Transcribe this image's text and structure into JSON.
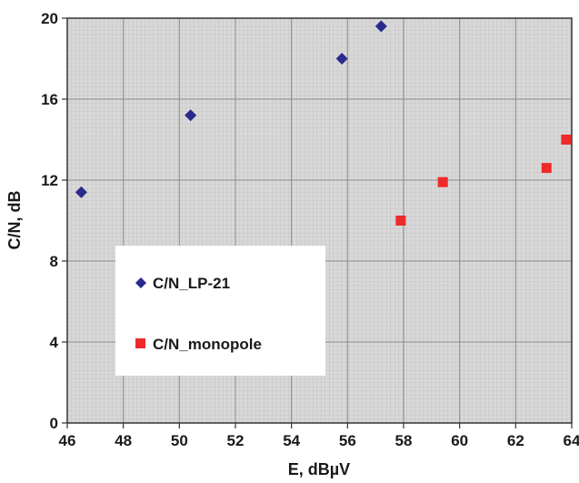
{
  "chart_data": {
    "type": "scatter",
    "xlabel": "E, dBµV",
    "ylabel": "C/N, dB",
    "xlim": [
      46,
      64
    ],
    "ylim": [
      0,
      20
    ],
    "x_ticks": [
      46,
      48,
      50,
      52,
      54,
      56,
      58,
      60,
      62,
      64
    ],
    "y_ticks": [
      0,
      4,
      8,
      12,
      16,
      20
    ],
    "x_tick_labels": [
      "46",
      "48",
      "50",
      "52",
      "54",
      "56",
      "58",
      "60",
      "62",
      "64"
    ],
    "y_tick_labels": [
      "0",
      "4",
      "8",
      "12",
      "16",
      "20"
    ],
    "grid": true,
    "legend_position": "lower-left",
    "series": [
      {
        "name": "C/N_LP-21",
        "marker": "diamond",
        "color": "#2a2a8c",
        "points": [
          {
            "x": 46.5,
            "y": 11.4
          },
          {
            "x": 50.4,
            "y": 15.2
          },
          {
            "x": 55.8,
            "y": 18.0
          },
          {
            "x": 57.2,
            "y": 19.6
          }
        ]
      },
      {
        "name": "C/N_monopole",
        "marker": "square",
        "color": "#ee2a2a",
        "points": [
          {
            "x": 57.9,
            "y": 10.0
          },
          {
            "x": 59.4,
            "y": 11.9
          },
          {
            "x": 63.1,
            "y": 12.6
          },
          {
            "x": 63.8,
            "y": 14.0
          }
        ]
      }
    ]
  }
}
